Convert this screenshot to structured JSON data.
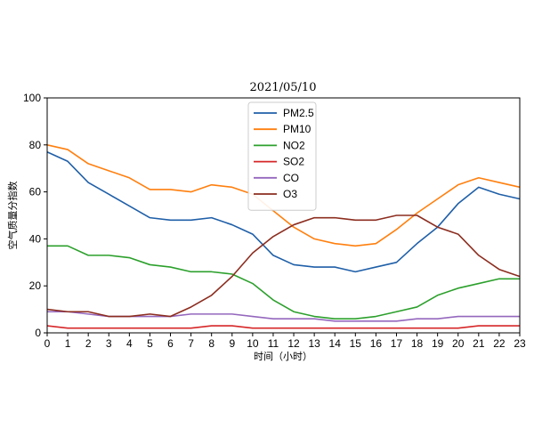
{
  "chart_data": {
    "type": "line",
    "title": "2021/05/10",
    "xlabel": "时间（小时）",
    "ylabel": "空气质量分指数",
    "x": [
      0,
      1,
      2,
      3,
      4,
      5,
      6,
      7,
      8,
      9,
      10,
      11,
      12,
      13,
      14,
      15,
      16,
      17,
      18,
      19,
      20,
      21,
      22,
      23
    ],
    "xlim": [
      0,
      23
    ],
    "ylim": [
      0,
      100
    ],
    "yticks": [
      0,
      20,
      40,
      60,
      80,
      100
    ],
    "grid": false,
    "legend_position": "top-center",
    "series": [
      {
        "name": "PM2.5",
        "color": "#1f5fa8",
        "values": [
          77,
          73,
          64,
          59,
          54,
          49,
          48,
          48,
          49,
          46,
          42,
          33,
          29,
          28,
          28,
          26,
          28,
          30,
          38,
          45,
          55,
          62,
          59,
          57
        ]
      },
      {
        "name": "PM10",
        "color": "#ff7f0e",
        "values": [
          80,
          78,
          72,
          69,
          66,
          61,
          61,
          60,
          63,
          62,
          59,
          52,
          45,
          40,
          38,
          37,
          38,
          44,
          51,
          57,
          63,
          66,
          64,
          62
        ]
      },
      {
        "name": "NO2",
        "color": "#2ca02c",
        "values": [
          37,
          37,
          33,
          33,
          32,
          29,
          28,
          26,
          26,
          25,
          21,
          14,
          9,
          7,
          6,
          6,
          7,
          9,
          11,
          16,
          19,
          21,
          23,
          23
        ]
      },
      {
        "name": "SO2",
        "color": "#d62728",
        "values": [
          3,
          2,
          2,
          2,
          2,
          2,
          2,
          2,
          3,
          3,
          2,
          2,
          2,
          2,
          2,
          2,
          2,
          2,
          2,
          2,
          2,
          3,
          3,
          3
        ]
      },
      {
        "name": "CO",
        "color": "#9467bd",
        "values": [
          9,
          9,
          8,
          7,
          7,
          7,
          7,
          8,
          8,
          8,
          7,
          6,
          6,
          6,
          5,
          5,
          5,
          5,
          6,
          6,
          7,
          7,
          7,
          7
        ]
      },
      {
        "name": "O3",
        "color": "#8c2d1f",
        "values": [
          10,
          9,
          9,
          7,
          7,
          8,
          7,
          11,
          16,
          24,
          34,
          41,
          46,
          49,
          49,
          48,
          48,
          50,
          50,
          45,
          42,
          33,
          27,
          24
        ]
      }
    ]
  }
}
